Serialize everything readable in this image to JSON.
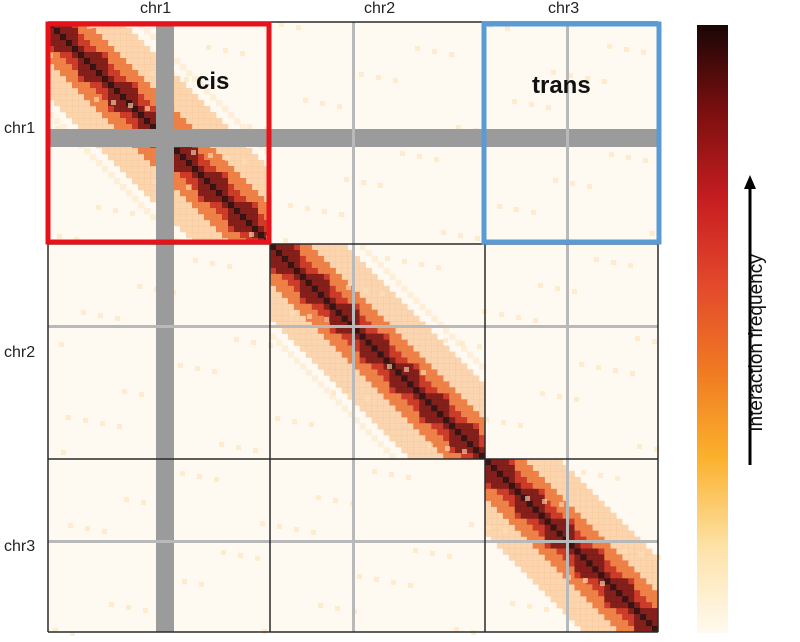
{
  "chromosomes": [
    "chr1",
    "chr2",
    "chr3"
  ],
  "annotations": {
    "cis": "cis",
    "trans": "trans"
  },
  "colorbar": {
    "label": "Interaction frequency",
    "colors": [
      "#fffaf0",
      "#fde2a8",
      "#fbb02c",
      "#f07a22",
      "#e34a2c",
      "#c81e21",
      "#7a0f0f",
      "#1a0606"
    ]
  },
  "highlight_colors": {
    "cis_box": "#e8131a",
    "trans_box": "#5b9bd5",
    "masked": "#9b9b9b",
    "grid": "#2a2a2a"
  }
}
